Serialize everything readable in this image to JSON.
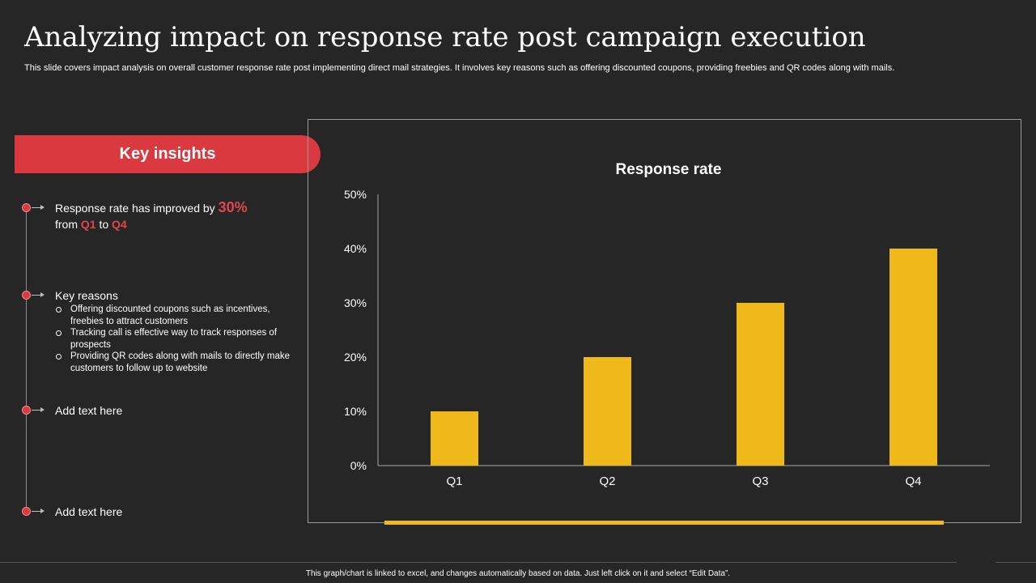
{
  "title": "Analyzing impact on response rate post campaign execution",
  "subtitle": "This slide covers impact analysis on overall customer response rate post implementing direct mail strategies. It involves key reasons such as offering discounted coupons, providing freebies and QR codes along with mails.",
  "insights": {
    "header": "Key insights",
    "item1": {
      "prefix": "Response rate has improved by ",
      "highlight": "30%",
      "line2_from": "from ",
      "q_from": "Q1",
      "to": " to ",
      "q_to": "Q4"
    },
    "reasons": {
      "heading": "Key reasons",
      "bullets": [
        "Offering discounted coupons such as incentives, freebies to attract customers",
        "Tracking call is effective way to track responses of prospects",
        "Providing QR codes along with mails to directly make customers to follow up to website"
      ]
    },
    "item3": "Add text here",
    "item4": "Add text here"
  },
  "chart_data": {
    "type": "bar",
    "title": "Response rate",
    "categories": [
      "Q1",
      "Q2",
      "Q3",
      "Q4"
    ],
    "values": [
      10,
      20,
      30,
      40
    ],
    "ylim": [
      0,
      50
    ],
    "yticks": [
      "0%",
      "10%",
      "20%",
      "30%",
      "40%",
      "50%"
    ],
    "xlabel": "",
    "ylabel": "",
    "bar_color": "#f0b91a",
    "grid": false
  },
  "footer": "This graph/chart is linked to excel, and changes automatically based on data. Just left click on it and select “Edit Data”.",
  "colors": {
    "accent_red": "#d9393f",
    "bar_yellow": "#f0b91a",
    "background": "#262626"
  }
}
